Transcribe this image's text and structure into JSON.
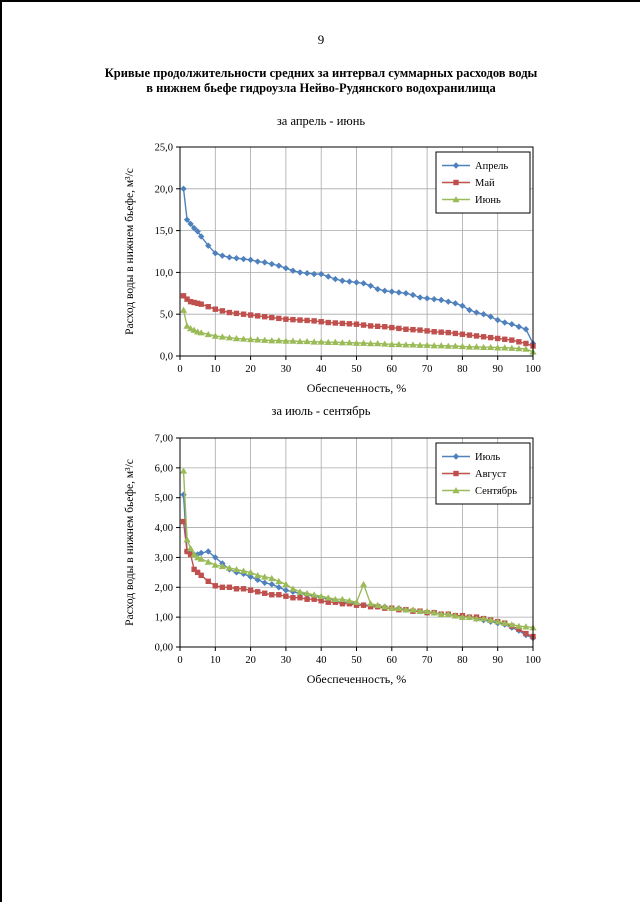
{
  "page": {
    "number": "9",
    "title_line1": "Кривые продолжительности средних за интервал суммарных расходов воды",
    "title_line2": "в нижнем бьефе гидроузла Нейво-Рудянского водохранилища"
  },
  "chart_data": [
    {
      "type": "line",
      "title": "за апрель - июнь",
      "xlabel": "Обеспеченность, %",
      "ylabel": "Расход воды в нижнем бьефе, м³/с",
      "xlim": [
        0,
        100
      ],
      "ylim": [
        0,
        25
      ],
      "grid": true,
      "legend_position": "top-right",
      "xticks": [
        0,
        10,
        20,
        30,
        40,
        50,
        60,
        70,
        80,
        90,
        100
      ],
      "xtick_labels": [
        "0",
        "10",
        "20",
        "30",
        "40",
        "50",
        "60",
        "70",
        "80",
        "90",
        "100"
      ],
      "yticks": [
        0,
        5,
        10,
        15,
        20,
        25
      ],
      "ytick_labels": [
        "0,0",
        "5,0",
        "10,0",
        "15,0",
        "20,0",
        "25,0"
      ],
      "x": [
        1,
        2,
        3,
        4,
        5,
        6,
        8,
        10,
        12,
        14,
        16,
        18,
        20,
        22,
        24,
        26,
        28,
        30,
        32,
        34,
        36,
        38,
        40,
        42,
        44,
        46,
        48,
        50,
        52,
        54,
        56,
        58,
        60,
        62,
        64,
        66,
        68,
        70,
        72,
        74,
        76,
        78,
        80,
        82,
        84,
        86,
        88,
        90,
        92,
        94,
        96,
        98,
        100
      ],
      "series": [
        {
          "name": "Апрель",
          "color": "#4F81BD",
          "marker": "diamond",
          "values": [
            20.0,
            16.3,
            15.8,
            15.3,
            14.9,
            14.3,
            13.2,
            12.3,
            12.0,
            11.8,
            11.7,
            11.6,
            11.5,
            11.3,
            11.2,
            11.0,
            10.8,
            10.5,
            10.2,
            10.0,
            9.9,
            9.8,
            9.8,
            9.5,
            9.2,
            9.0,
            8.9,
            8.8,
            8.7,
            8.4,
            8.0,
            7.8,
            7.7,
            7.6,
            7.5,
            7.3,
            7.0,
            6.9,
            6.8,
            6.7,
            6.5,
            6.3,
            6.0,
            5.5,
            5.2,
            5.0,
            4.7,
            4.3,
            4.0,
            3.8,
            3.5,
            3.2,
            1.5
          ]
        },
        {
          "name": "Май",
          "color": "#C0504D",
          "marker": "square",
          "values": [
            7.2,
            6.8,
            6.5,
            6.4,
            6.3,
            6.2,
            5.9,
            5.6,
            5.4,
            5.2,
            5.1,
            5.0,
            4.9,
            4.8,
            4.7,
            4.6,
            4.5,
            4.4,
            4.35,
            4.3,
            4.25,
            4.2,
            4.1,
            4.0,
            3.95,
            3.9,
            3.85,
            3.8,
            3.7,
            3.6,
            3.55,
            3.5,
            3.4,
            3.3,
            3.2,
            3.15,
            3.1,
            3.0,
            2.9,
            2.85,
            2.8,
            2.7,
            2.6,
            2.5,
            2.4,
            2.3,
            2.2,
            2.1,
            2.0,
            1.9,
            1.7,
            1.5,
            1.2
          ]
        },
        {
          "name": "Июнь",
          "color": "#9BBB59",
          "marker": "triangle",
          "values": [
            5.5,
            3.6,
            3.3,
            3.1,
            2.9,
            2.8,
            2.6,
            2.4,
            2.3,
            2.2,
            2.1,
            2.05,
            2.0,
            1.95,
            1.9,
            1.85,
            1.85,
            1.8,
            1.8,
            1.75,
            1.75,
            1.7,
            1.7,
            1.65,
            1.65,
            1.6,
            1.6,
            1.55,
            1.55,
            1.5,
            1.5,
            1.45,
            1.4,
            1.4,
            1.35,
            1.35,
            1.3,
            1.3,
            1.25,
            1.25,
            1.2,
            1.2,
            1.15,
            1.1,
            1.1,
            1.05,
            1.05,
            1.0,
            1.0,
            0.95,
            0.9,
            0.85,
            0.5
          ]
        }
      ]
    },
    {
      "type": "line",
      "title": "за июль - сентябрь",
      "xlabel": "Обеспеченность, %",
      "ylabel": "Расход воды в нижнем бьефе, м³/с",
      "xlim": [
        0,
        100
      ],
      "ylim": [
        0,
        7
      ],
      "grid": true,
      "legend_position": "top-right",
      "xticks": [
        0,
        10,
        20,
        30,
        40,
        50,
        60,
        70,
        80,
        90,
        100
      ],
      "xtick_labels": [
        "0",
        "10",
        "20",
        "30",
        "40",
        "50",
        "60",
        "70",
        "80",
        "90",
        "100"
      ],
      "yticks": [
        0,
        1,
        2,
        3,
        4,
        5,
        6,
        7
      ],
      "ytick_labels": [
        "0,00",
        "1,00",
        "2,00",
        "3,00",
        "4,00",
        "5,00",
        "6,00",
        "7,00"
      ],
      "x": [
        1,
        2,
        3,
        4,
        5,
        6,
        8,
        10,
        12,
        14,
        16,
        18,
        20,
        22,
        24,
        26,
        28,
        30,
        32,
        34,
        36,
        38,
        40,
        42,
        44,
        46,
        48,
        50,
        52,
        54,
        56,
        58,
        60,
        62,
        64,
        66,
        68,
        70,
        72,
        74,
        76,
        78,
        80,
        82,
        84,
        86,
        88,
        90,
        92,
        94,
        96,
        98,
        100
      ],
      "series": [
        {
          "name": "Июль",
          "color": "#4F81BD",
          "marker": "diamond",
          "values": [
            5.1,
            3.2,
            3.15,
            3.1,
            3.1,
            3.15,
            3.2,
            3.0,
            2.8,
            2.6,
            2.5,
            2.45,
            2.35,
            2.25,
            2.15,
            2.1,
            2.0,
            1.9,
            1.85,
            1.8,
            1.75,
            1.7,
            1.65,
            1.6,
            1.55,
            1.5,
            1.5,
            1.45,
            1.4,
            1.4,
            1.35,
            1.35,
            1.3,
            1.3,
            1.25,
            1.2,
            1.2,
            1.15,
            1.15,
            1.1,
            1.1,
            1.05,
            1.0,
            1.0,
            0.95,
            0.9,
            0.85,
            0.8,
            0.75,
            0.65,
            0.55,
            0.4,
            0.3
          ]
        },
        {
          "name": "Август",
          "color": "#C0504D",
          "marker": "square",
          "values": [
            4.2,
            3.2,
            3.1,
            2.6,
            2.5,
            2.4,
            2.2,
            2.05,
            2.0,
            2.0,
            1.95,
            1.95,
            1.9,
            1.85,
            1.8,
            1.75,
            1.75,
            1.7,
            1.65,
            1.65,
            1.6,
            1.6,
            1.55,
            1.5,
            1.5,
            1.45,
            1.45,
            1.4,
            1.4,
            1.35,
            1.35,
            1.3,
            1.3,
            1.25,
            1.25,
            1.2,
            1.2,
            1.15,
            1.15,
            1.1,
            1.1,
            1.05,
            1.05,
            1.0,
            1.0,
            0.95,
            0.9,
            0.85,
            0.8,
            0.7,
            0.6,
            0.45,
            0.35
          ]
        },
        {
          "name": "Сентябрь",
          "color": "#9BBB59",
          "marker": "triangle",
          "values": [
            5.9,
            3.6,
            3.3,
            3.1,
            3.0,
            2.95,
            2.85,
            2.75,
            2.7,
            2.65,
            2.6,
            2.55,
            2.5,
            2.4,
            2.35,
            2.3,
            2.2,
            2.1,
            1.95,
            1.85,
            1.8,
            1.75,
            1.7,
            1.65,
            1.6,
            1.6,
            1.55,
            1.5,
            2.1,
            1.45,
            1.4,
            1.35,
            1.3,
            1.3,
            1.25,
            1.25,
            1.2,
            1.2,
            1.15,
            1.1,
            1.1,
            1.05,
            1.0,
            1.0,
            0.95,
            0.95,
            0.9,
            0.85,
            0.8,
            0.75,
            0.7,
            0.68,
            0.65
          ]
        }
      ]
    }
  ]
}
